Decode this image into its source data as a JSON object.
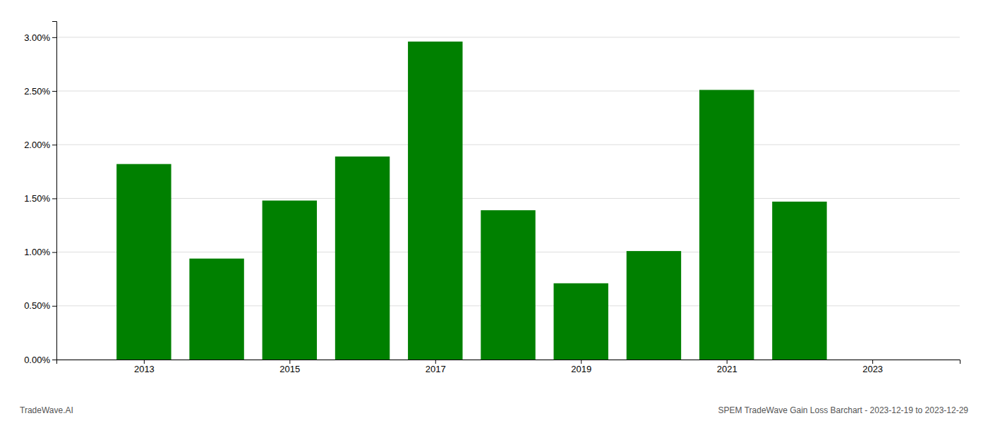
{
  "chart_data": {
    "type": "bar",
    "x": [
      2013,
      2014,
      2015,
      2016,
      2017,
      2018,
      2019,
      2020,
      2021,
      2022
    ],
    "values": [
      0.0182,
      0.0094,
      0.0148,
      0.0189,
      0.0296,
      0.0139,
      0.0071,
      0.0101,
      0.0251,
      0.0147
    ],
    "color": "#008000",
    "xlim": [
      2011.8,
      2024.2
    ],
    "xticks": [
      2013,
      2015,
      2017,
      2019,
      2021,
      2023
    ],
    "ylim": [
      0,
      0.0315
    ],
    "yticks": [
      {
        "value": 0.0,
        "label": "0.00%"
      },
      {
        "value": 0.005,
        "label": "0.50%"
      },
      {
        "value": 0.01,
        "label": "1.00%"
      },
      {
        "value": 0.015,
        "label": "1.50%"
      },
      {
        "value": 0.02,
        "label": "2.00%"
      },
      {
        "value": 0.025,
        "label": "2.50%"
      },
      {
        "value": 0.03,
        "label": "3.00%"
      }
    ],
    "grid": true,
    "annotations": [
      "TradeWave.AI",
      "SPEM TradeWave Gain Loss Barchart - 2023-12-19 to 2023-12-29"
    ]
  }
}
